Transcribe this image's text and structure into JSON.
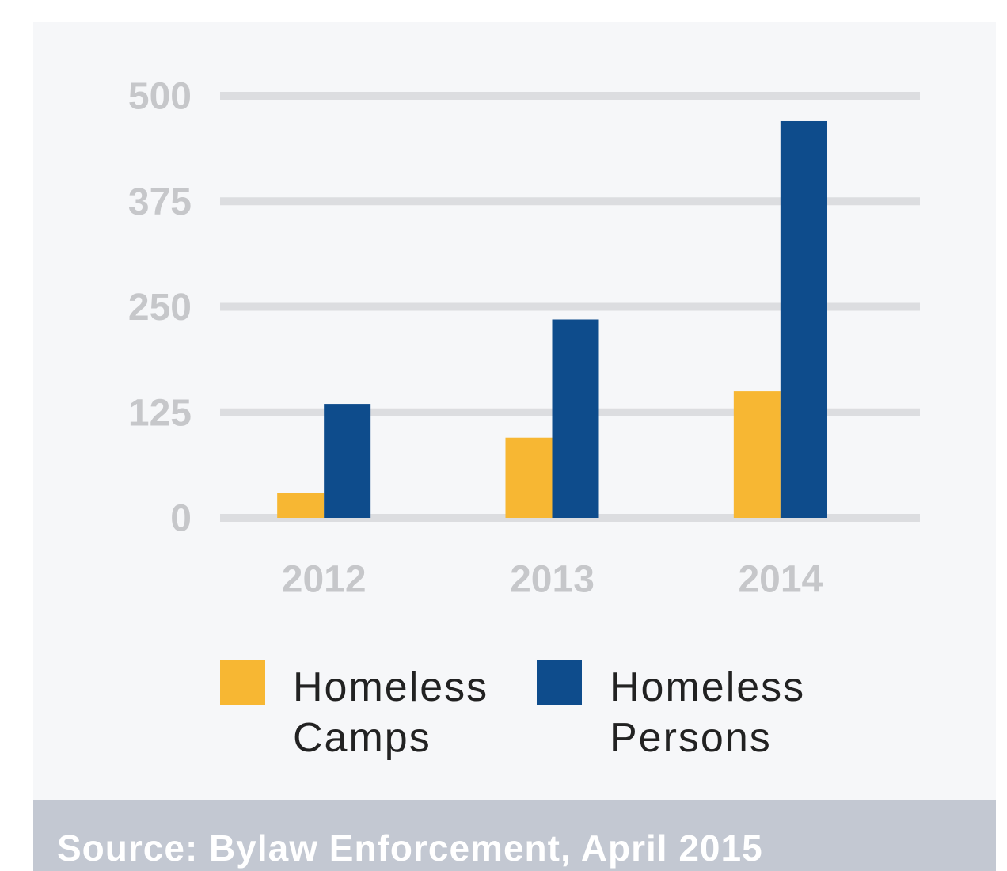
{
  "chart_data": {
    "type": "bar",
    "categories": [
      "2012",
      "2013",
      "2014"
    ],
    "series": [
      {
        "name": "Homeless Camps",
        "color": "#f7b733",
        "values": [
          30,
          95,
          150
        ]
      },
      {
        "name": "Homeless Persons",
        "color": "#0e4c8c",
        "values": [
          135,
          235,
          470
        ]
      }
    ],
    "ylim": [
      0,
      500
    ],
    "yticks": [
      0,
      125,
      250,
      375,
      500
    ],
    "grid": true,
    "source": "Source: Bylaw Enforcement, April 2015"
  }
}
